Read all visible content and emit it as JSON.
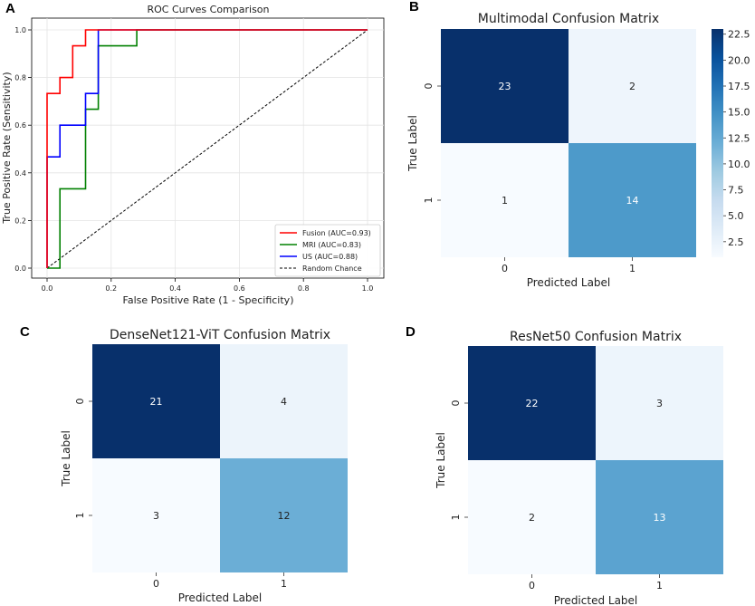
{
  "panels": {
    "a": "A",
    "b": "B",
    "c": "C",
    "d": "D"
  },
  "chart_data": [
    {
      "type": "line",
      "title": "ROC Curves Comparison",
      "xlabel": "False Positive Rate (1 - Specificity)",
      "ylabel": "True Positive Rate (Sensitivity)",
      "xlim": [
        0,
        1
      ],
      "ylim": [
        0,
        1
      ],
      "xticks": [
        "0.0",
        "0.2",
        "0.4",
        "0.6",
        "0.8",
        "1.0"
      ],
      "yticks": [
        "0.0",
        "0.2",
        "0.4",
        "0.6",
        "0.8",
        "1.0"
      ],
      "grid": true,
      "legend_position": "bottom-right",
      "series": [
        {
          "name": "Fusion (AUC=0.93)",
          "color": "#ff0000",
          "x": [
            0,
            0,
            0.04,
            0.04,
            0.08,
            0.08,
            0.12,
            0.12,
            1.0
          ],
          "y": [
            0,
            0.733,
            0.733,
            0.8,
            0.8,
            0.933,
            0.933,
            1.0,
            1.0
          ]
        },
        {
          "name": "MRI (AUC=0.83)",
          "color": "#008000",
          "x": [
            0,
            0.04,
            0.04,
            0.12,
            0.12,
            0.16,
            0.16,
            0.28,
            0.28,
            1.0
          ],
          "y": [
            0,
            0,
            0.333,
            0.333,
            0.667,
            0.667,
            0.933,
            0.933,
            1.0,
            1.0
          ]
        },
        {
          "name": "US (AUC=0.88)",
          "color": "#0000ff",
          "x": [
            0,
            0,
            0.04,
            0.04,
            0.12,
            0.12,
            0.16,
            0.16,
            1.0
          ],
          "y": [
            0,
            0.467,
            0.467,
            0.6,
            0.6,
            0.733,
            0.733,
            1.0,
            1.0
          ]
        },
        {
          "name": "Random Chance",
          "color": "#000000",
          "dashed": true,
          "x": [
            0,
            1
          ],
          "y": [
            0,
            1
          ]
        }
      ]
    },
    {
      "type": "heatmap",
      "title": "Multimodal Confusion Matrix",
      "xlabel": "Predicted Label",
      "ylabel": "True Label",
      "x_categories": [
        "0",
        "1"
      ],
      "y_categories": [
        "0",
        "1"
      ],
      "values": [
        [
          23,
          2
        ],
        [
          1,
          14
        ]
      ],
      "colorbar": true,
      "colorbar_ticks": [
        "2.5",
        "5.0",
        "7.5",
        "10.0",
        "12.5",
        "15.0",
        "17.5",
        "20.0",
        "22.5"
      ]
    },
    {
      "type": "heatmap",
      "title": "DenseNet121-ViT Confusion Matrix",
      "xlabel": "Predicted Label",
      "ylabel": "True Label",
      "x_categories": [
        "0",
        "1"
      ],
      "y_categories": [
        "0",
        "1"
      ],
      "values": [
        [
          21,
          4
        ],
        [
          3,
          12
        ]
      ],
      "colorbar": false
    },
    {
      "type": "heatmap",
      "title": "ResNet50 Confusion Matrix",
      "xlabel": "Predicted Label",
      "ylabel": "True Label",
      "x_categories": [
        "0",
        "1"
      ],
      "y_categories": [
        "0",
        "1"
      ],
      "values": [
        [
          22,
          3
        ],
        [
          2,
          13
        ]
      ],
      "colorbar": false
    }
  ]
}
